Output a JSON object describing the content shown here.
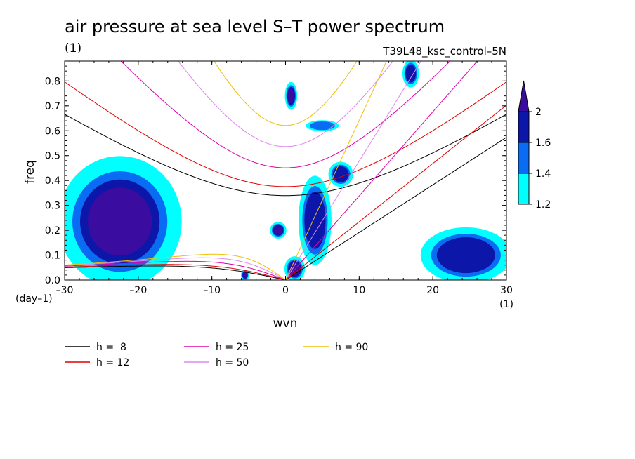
{
  "chart_data": {
    "type": "heatmap",
    "title": "air pressure at sea level S–T power spectrum",
    "subtitle_left": "(1)",
    "subtitle_right": "T39L48_ksc_control–5N",
    "xlabel": "wvn",
    "ylabel": "freq",
    "x_unit": "(1)",
    "y_unit": "(day–1)",
    "xlim": [
      -30,
      30
    ],
    "ylim": [
      0,
      0.88
    ],
    "x_ticks": [
      {
        "value": -30,
        "label": "–30"
      },
      {
        "value": -20,
        "label": "–20"
      },
      {
        "value": -10,
        "label": "–10"
      },
      {
        "value": 0,
        "label": "0"
      },
      {
        "value": 10,
        "label": "10"
      },
      {
        "value": 20,
        "label": "20"
      },
      {
        "value": 30,
        "label": "30"
      }
    ],
    "y_ticks": [
      {
        "value": 0.0,
        "label": "0.0"
      },
      {
        "value": 0.1,
        "label": "0.1"
      },
      {
        "value": 0.2,
        "label": "0.2"
      },
      {
        "value": 0.3,
        "label": "0.3"
      },
      {
        "value": 0.4,
        "label": "0.4"
      },
      {
        "value": 0.5,
        "label": "0.5"
      },
      {
        "value": 0.6,
        "label": "0.6"
      },
      {
        "value": 0.7,
        "label": "0.7"
      },
      {
        "value": 0.8,
        "label": "0.8"
      }
    ],
    "colorbar": {
      "levels": [
        {
          "from": 1.2,
          "to": 1.4,
          "color": "#00ffff"
        },
        {
          "from": 1.4,
          "to": 1.6,
          "color": "#0a6cf2"
        },
        {
          "from": 1.6,
          "to": 2.0,
          "color": "#0c16a8"
        },
        {
          "from": 2.0,
          "to": null,
          "color": "#3a0ca0"
        }
      ],
      "labels": [
        "2",
        "1.6",
        "1.4",
        "1.2"
      ]
    },
    "legend": [
      {
        "label": "h =  8",
        "color": "#000000",
        "h": 8
      },
      {
        "label": "h = 12",
        "color": "#e00000",
        "h": 12
      },
      {
        "label": "h = 25",
        "color": "#dd00aa",
        "h": 25
      },
      {
        "label": "h = 50",
        "color": "#dd88ee",
        "h": 50
      },
      {
        "label": "h = 90",
        "color": "#f0c000",
        "h": 90
      }
    ],
    "regions": [
      {
        "x": [
          -30,
          -15
        ],
        "y": [
          0.0,
          0.47
        ],
        "level": 2.0
      },
      {
        "x": [
          19,
          30
        ],
        "y": [
          0.0,
          0.2
        ],
        "level": 1.6
      },
      {
        "x": [
          0,
          1.5
        ],
        "y": [
          0.69,
          0.79
        ],
        "level": 2.0
      },
      {
        "x": [
          -2,
          0
        ],
        "y": [
          0.17,
          0.23
        ],
        "level": 2.0
      },
      {
        "x": [
          0,
          2.5
        ],
        "y": [
          0.0,
          0.09
        ],
        "level": 2.0
      },
      {
        "x": [
          -6,
          -5
        ],
        "y": [
          0.0,
          0.04
        ],
        "level": 2.0
      },
      {
        "x": [
          2,
          6
        ],
        "y": [
          0.08,
          0.4
        ],
        "level": 1.6
      },
      {
        "x": [
          6,
          9
        ],
        "y": [
          0.38,
          0.47
        ],
        "level": 1.6
      },
      {
        "x": [
          3,
          7
        ],
        "y": [
          0.6,
          0.64
        ],
        "level": 1.4
      },
      {
        "x": [
          16,
          18
        ],
        "y": [
          0.78,
          0.88
        ],
        "level": 1.6
      }
    ]
  }
}
